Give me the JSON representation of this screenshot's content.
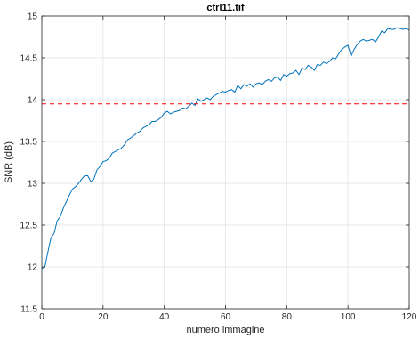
{
  "chart_data": {
    "type": "line",
    "title": "ctrl11.tif",
    "xlabel": "numero immagine",
    "ylabel": "SNR (dB)",
    "xlim": [
      0,
      120
    ],
    "ylim": [
      11.5,
      15
    ],
    "x_ticks": [
      0,
      20,
      40,
      60,
      80,
      100,
      120
    ],
    "x_tick_labels": [
      "0",
      "20",
      "40",
      "60",
      "80",
      "100",
      "120"
    ],
    "y_ticks": [
      11.5,
      12,
      12.5,
      13,
      13.5,
      14,
      14.5,
      15
    ],
    "y_tick_labels": [
      "11.5",
      "12",
      "12.5",
      "13",
      "13.5",
      "14",
      "14.5",
      "15"
    ],
    "grid": true,
    "series": [
      {
        "color": "#0072bd",
        "style": "solid",
        "x": [
          0,
          1,
          2,
          3,
          4,
          5,
          6,
          7,
          8,
          9,
          10,
          11,
          12,
          13,
          14,
          15,
          16,
          17,
          18,
          19,
          20,
          21,
          22,
          23,
          24,
          25,
          26,
          27,
          28,
          29,
          30,
          31,
          32,
          33,
          34,
          35,
          36,
          37,
          38,
          39,
          40,
          41,
          42,
          43,
          44,
          45,
          46,
          47,
          48,
          49,
          50,
          51,
          52,
          53,
          54,
          55,
          56,
          57,
          58,
          59,
          60,
          61,
          62,
          63,
          64,
          65,
          66,
          67,
          68,
          69,
          70,
          71,
          72,
          73,
          74,
          75,
          76,
          77,
          78,
          79,
          80,
          81,
          82,
          83,
          84,
          85,
          86,
          87,
          88,
          89,
          90,
          91,
          92,
          93,
          94,
          95,
          96,
          97,
          98,
          99,
          100,
          101,
          102,
          103,
          104,
          105,
          106,
          107,
          108,
          109,
          110,
          111,
          112,
          113,
          114,
          115,
          116,
          117,
          118,
          119,
          120
        ],
        "y": [
          11.98,
          12.0,
          12.18,
          12.35,
          12.4,
          12.55,
          12.6,
          12.7,
          12.78,
          12.86,
          12.93,
          12.96,
          13.0,
          13.05,
          13.09,
          13.09,
          13.02,
          13.05,
          13.16,
          13.2,
          13.26,
          13.27,
          13.3,
          13.36,
          13.38,
          13.4,
          13.42,
          13.46,
          13.52,
          13.54,
          13.57,
          13.6,
          13.62,
          13.66,
          13.68,
          13.7,
          13.74,
          13.74,
          13.76,
          13.79,
          13.84,
          13.86,
          13.83,
          13.85,
          13.86,
          13.87,
          13.9,
          13.89,
          13.92,
          13.96,
          13.93,
          14.01,
          13.98,
          14.0,
          14.02,
          14.0,
          14.04,
          14.06,
          14.08,
          14.1,
          14.09,
          14.11,
          14.12,
          14.09,
          14.17,
          14.13,
          14.18,
          14.16,
          14.19,
          14.15,
          14.19,
          14.2,
          14.18,
          14.22,
          14.24,
          14.22,
          14.26,
          14.27,
          14.23,
          14.3,
          14.28,
          14.31,
          14.32,
          14.35,
          14.3,
          14.38,
          14.36,
          14.41,
          14.39,
          14.35,
          14.42,
          14.41,
          14.45,
          14.43,
          14.46,
          14.5,
          14.49,
          14.55,
          14.6,
          14.63,
          14.65,
          14.52,
          14.6,
          14.66,
          14.7,
          14.72,
          14.7,
          14.71,
          14.72,
          14.69,
          14.75,
          14.82,
          14.8,
          14.85,
          14.84,
          14.84,
          14.86,
          14.85,
          14.84,
          14.85,
          14.83
        ]
      },
      {
        "color": "#ff0000",
        "style": "dashed",
        "x": [
          0,
          120
        ],
        "y": [
          13.95,
          13.95
        ]
      }
    ]
  }
}
